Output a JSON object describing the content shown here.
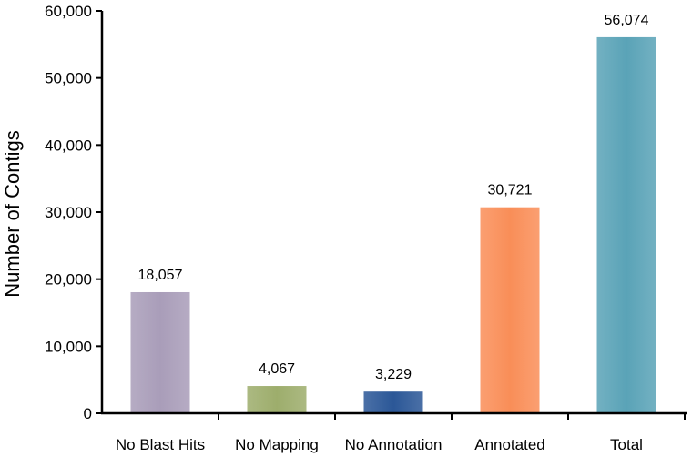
{
  "chart_data": {
    "type": "bar",
    "title": "",
    "xlabel": "",
    "ylabel": "Number of Contigs",
    "ylim": [
      0,
      60000
    ],
    "yticks": [
      0,
      10000,
      20000,
      30000,
      40000,
      50000,
      60000
    ],
    "ytick_labels": [
      "0",
      "10,000",
      "20,000",
      "30,000",
      "40,000",
      "50,000",
      "60,000"
    ],
    "grid": false,
    "legend": "none",
    "categories": [
      "No Blast Hits",
      "No Mapping",
      "No Annotation",
      "Annotated",
      "Total"
    ],
    "values": [
      18057,
      4067,
      3229,
      30721,
      56074
    ],
    "data_labels": [
      "18,057",
      "4,067",
      "3,229",
      "30,721",
      "56,074"
    ],
    "colors": [
      "#A99DB9",
      "#9DAD6C",
      "#2B5797",
      "#F98E58",
      "#5AA3B7"
    ]
  }
}
